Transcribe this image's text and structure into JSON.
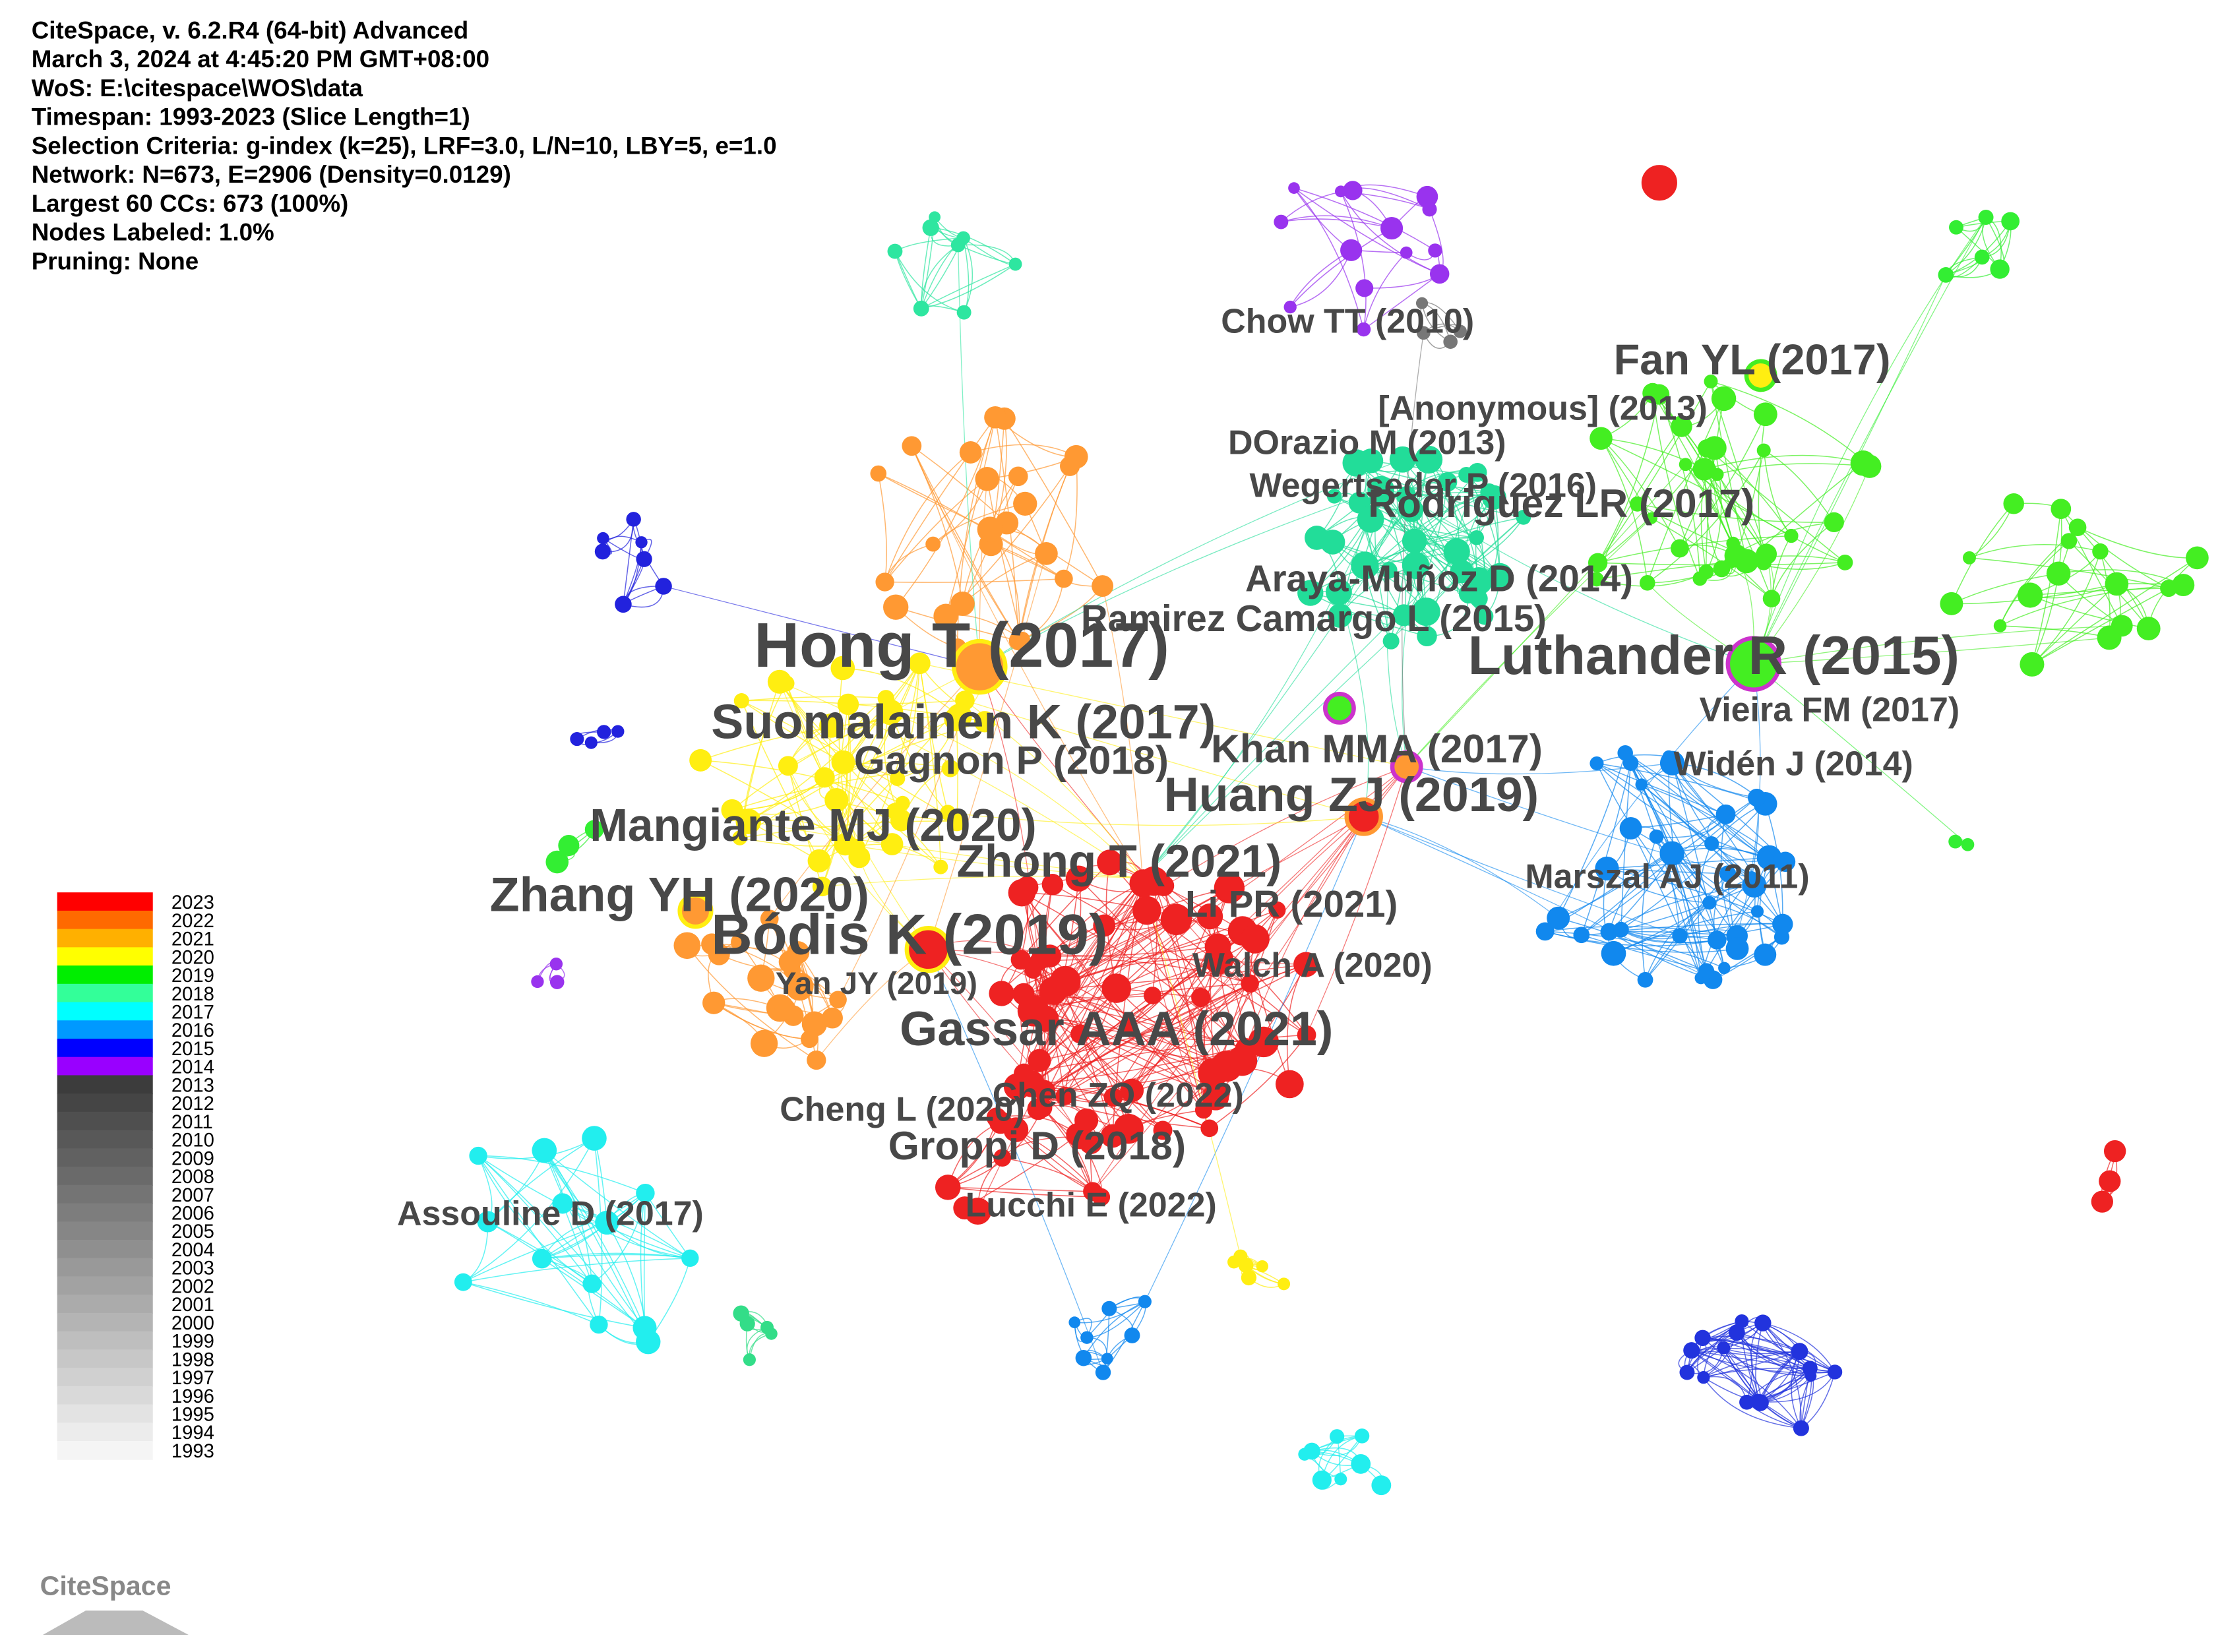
{
  "header": {
    "lines": [
      "CiteSpace, v. 6.2.R4 (64-bit) Advanced",
      "March 3, 2024 at 4:45:20 PM GMT+08:00",
      "WoS: E:\\citespace\\WOS\\data",
      "Timespan: 1993-2023 (Slice Length=1)",
      "Selection Criteria: g-index (k=25), LRF=3.0, L/N=10, LBY=5, e=1.0",
      "Network: N=673, E=2906 (Density=0.0129)",
      "Largest 60 CCs: 673 (100%)",
      "Nodes Labeled: 1.0%",
      "Pruning: None"
    ]
  },
  "node_labels": [
    "Chow TT (2010)",
    "Fan YL (2017)",
    "[Anonymous] (2013)",
    "DOrazio M (2013)",
    "Wegertseder P (2016)",
    "Rodriguez LR (2017)",
    "Araya-Muñoz D (2014)",
    "Ramirez Camargo L (2015)",
    "Hong T (2017)",
    "Luthander R (2015)",
    "Vieira FM (2017)",
    "Suomalainen K (2017)",
    "Khan MMA (2017)",
    "Gagnon P (2018)",
    "Widén J (2014)",
    "Huang ZJ (2019)",
    "Mangiante MJ (2020)",
    "Zhong T (2021)",
    "Marszal AJ (2011)",
    "Zhang YH (2020)",
    "Li PR (2021)",
    "Bódis K (2019)",
    "Walch A (2020)",
    "Yan JY (2019)",
    "Gassar AAA (2021)",
    "Chen ZQ (2022)",
    "Cheng L (2020)",
    "Groppi D (2018)",
    "Assouline D (2017)",
    "Lucchi E (2022)"
  ],
  "legend": {
    "years": [
      "2023",
      "2022",
      "2021",
      "2020",
      "2019",
      "2018",
      "2017",
      "2016",
      "2015",
      "2014",
      "2013",
      "2012",
      "2011",
      "2010",
      "2009",
      "2008",
      "2007",
      "2006",
      "2005",
      "2004",
      "2003",
      "2002",
      "2001",
      "2000",
      "1999",
      "1998",
      "1997",
      "1996",
      "1995",
      "1994",
      "1993"
    ]
  },
  "logo": "CiteSpace"
}
